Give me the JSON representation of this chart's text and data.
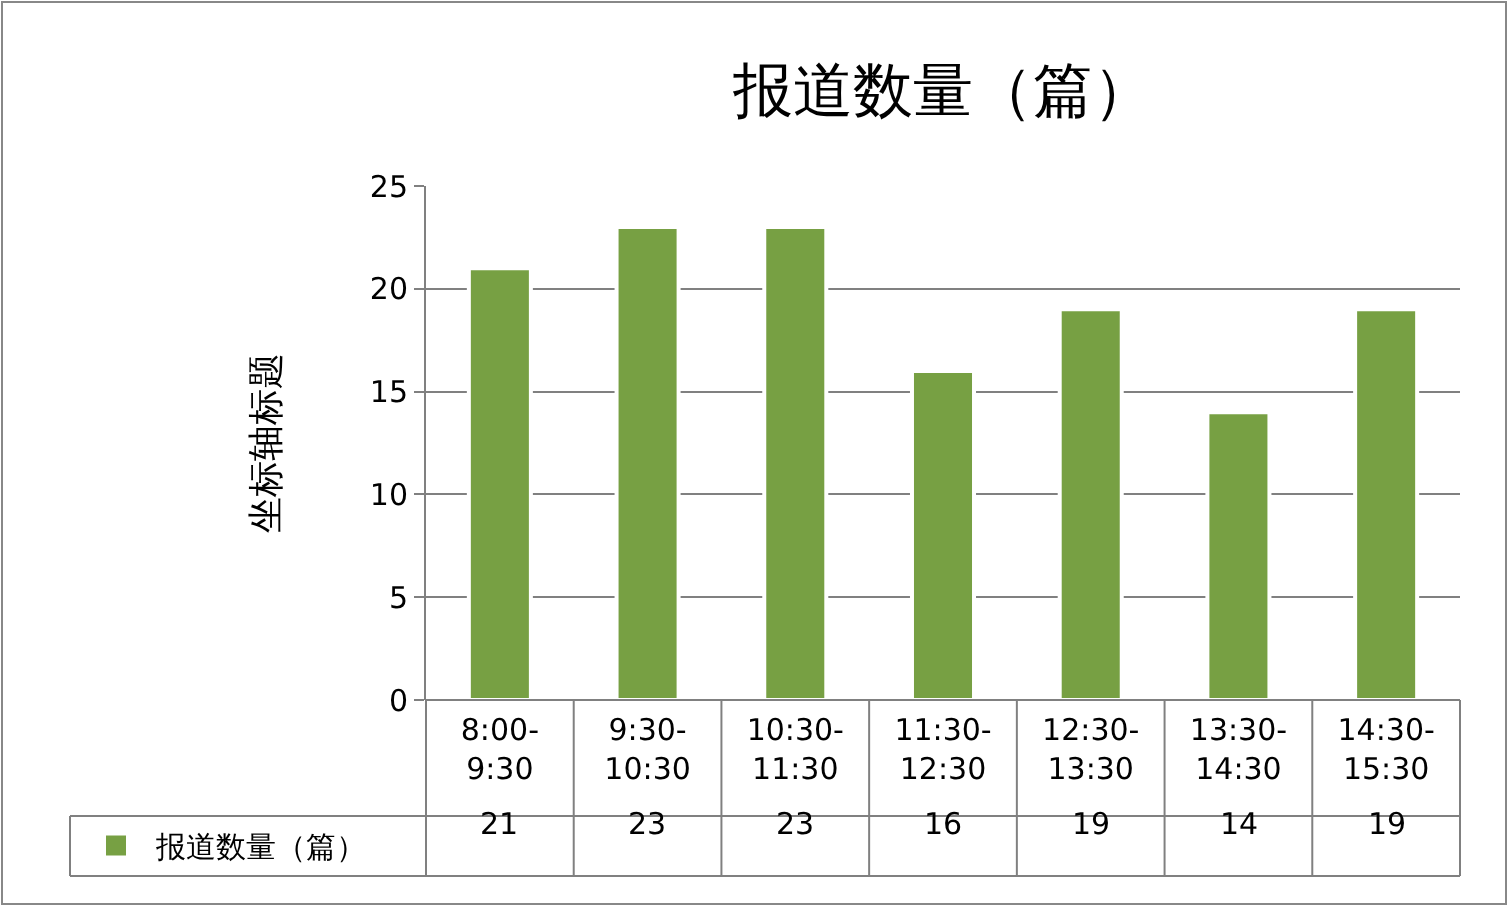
{
  "chart_data": {
    "type": "bar",
    "title": "报道数量（篇）",
    "ylabel": "坐标轴标题",
    "categories": [
      "8:00-9:30",
      "9:30-10:30",
      "10:30-11:30",
      "11:30-12:30",
      "12:30-13:30",
      "13:30-14:30",
      "14:30-15:30"
    ],
    "series": [
      {
        "name": "报道数量（篇）",
        "color": "#77a043",
        "values": [
          21,
          23,
          23,
          16,
          19,
          14,
          19
        ]
      }
    ],
    "ylim": [
      0,
      25
    ],
    "yticks": [
      0,
      5,
      10,
      15,
      20,
      25
    ],
    "grid": "y",
    "legend": "bottom",
    "data_labels": true
  }
}
